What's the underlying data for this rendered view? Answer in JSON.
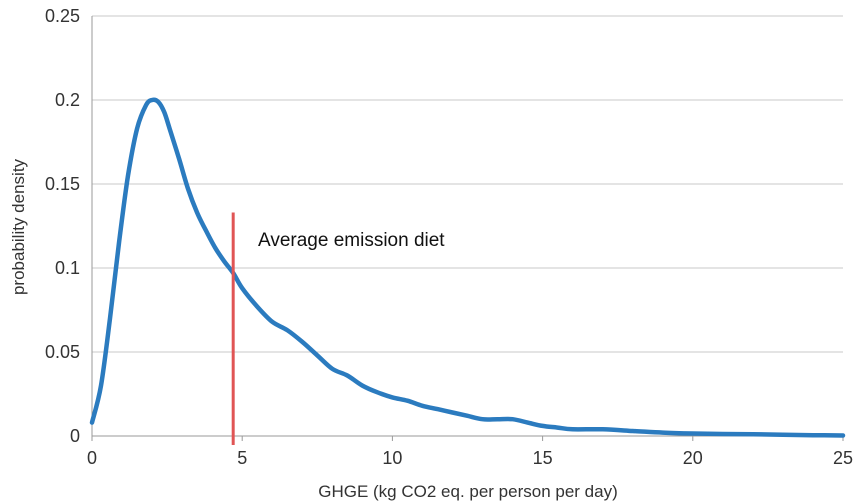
{
  "chart_data": {
    "type": "line",
    "title": "",
    "xlabel": "GHGE (kg CO2 eq. per person per day)",
    "ylabel": "probability density",
    "xlim": [
      0,
      25
    ],
    "ylim": [
      0,
      0.25
    ],
    "x_ticks": [
      0,
      5,
      10,
      15,
      20,
      25
    ],
    "y_ticks": [
      0,
      0.05,
      0.1,
      0.15,
      0.2,
      0.25
    ],
    "y_tick_labels": [
      "0",
      "0.05",
      "0.1",
      "0.15",
      "0.2",
      "0.25"
    ],
    "grid": "horizontal",
    "legend": "none",
    "series": [
      {
        "color": "#2b7bbf",
        "x": [
          0,
          0.3,
          0.6,
          0.9,
          1.2,
          1.5,
          1.8,
          2.0,
          2.2,
          2.4,
          2.6,
          2.9,
          3.2,
          3.5,
          3.8,
          4.1,
          4.4,
          4.7,
          5.0,
          5.5,
          6.0,
          6.5,
          7.0,
          7.5,
          8.0,
          8.5,
          9.0,
          9.5,
          10.0,
          10.5,
          11.0,
          11.5,
          12.0,
          12.5,
          13.0,
          13.5,
          14.0,
          14.5,
          15.0,
          15.5,
          16.0,
          17.0,
          18.0,
          19.0,
          20.0,
          21.0,
          22.0,
          23.0,
          24.0,
          25.0
        ],
        "y": [
          0.008,
          0.03,
          0.07,
          0.115,
          0.155,
          0.183,
          0.197,
          0.2,
          0.199,
          0.193,
          0.182,
          0.165,
          0.147,
          0.133,
          0.122,
          0.112,
          0.104,
          0.097,
          0.088,
          0.077,
          0.068,
          0.063,
          0.056,
          0.048,
          0.04,
          0.036,
          0.03,
          0.026,
          0.023,
          0.021,
          0.018,
          0.016,
          0.014,
          0.012,
          0.01,
          0.01,
          0.01,
          0.008,
          0.006,
          0.005,
          0.004,
          0.004,
          0.003,
          0.002,
          0.0015,
          0.0012,
          0.001,
          0.0008,
          0.0005,
          0.0003
        ]
      }
    ],
    "reference_line": {
      "label": "Average emission diet",
      "x": 4.7,
      "y_top": 0.133,
      "color": "#e05555"
    }
  }
}
